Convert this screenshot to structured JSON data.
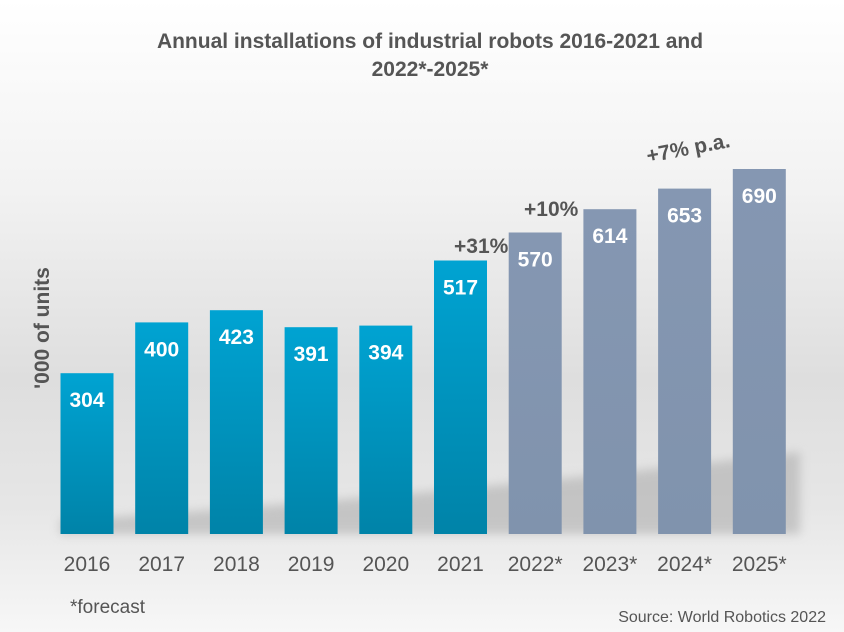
{
  "chart_data": {
    "type": "bar",
    "title": "Annual installations of industrial robots 2016-2021 and 2022*-2025*",
    "title_lines": [
      "Annual installations of industrial robots 2016-2021 and",
      "2022*-2025*"
    ],
    "xlabel": "",
    "ylabel": "'000 of units",
    "ylim": [
      0,
      690
    ],
    "grid": false,
    "categories": [
      "2016",
      "2017",
      "2018",
      "2019",
      "2020",
      "2021",
      "2022*",
      "2023*",
      "2024*",
      "2025*"
    ],
    "values": [
      304,
      400,
      423,
      391,
      394,
      517,
      570,
      614,
      653,
      690
    ],
    "forecast": [
      false,
      false,
      false,
      false,
      false,
      false,
      true,
      true,
      true,
      true
    ],
    "colors": {
      "actual": "#0099c7",
      "actual_dark": "#0083a8",
      "forecast": "#8295b0"
    },
    "annotations": [
      {
        "text": "+31%",
        "near": "2021-2022"
      },
      {
        "text": "+10%",
        "near": "2022-2023"
      },
      {
        "text": "+7% p.a.",
        "near": "2024-2025"
      }
    ],
    "footnote": "*forecast",
    "source": "Source: World Robotics 2022"
  }
}
